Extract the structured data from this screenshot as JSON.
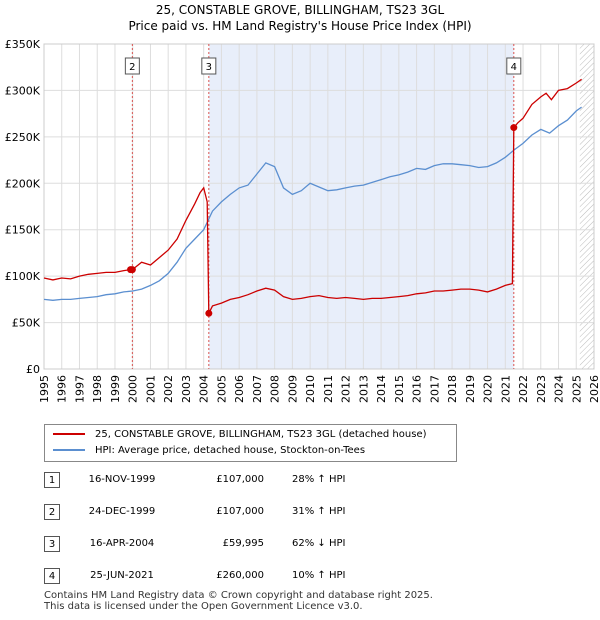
{
  "title_line1": "25, CONSTABLE GROVE, BILLINGHAM, TS23 3GL",
  "title_line2": "Price paid vs. HM Land Registry's House Price Index (HPI)",
  "chart_data": {
    "type": "line",
    "ylim": [
      0,
      350000
    ],
    "xlim": [
      1995,
      2026
    ],
    "y_ticks": [
      {
        "value": 0,
        "label": "£0"
      },
      {
        "value": 50000,
        "label": "£50K"
      },
      {
        "value": 100000,
        "label": "£100K"
      },
      {
        "value": 150000,
        "label": "£150K"
      },
      {
        "value": 200000,
        "label": "£200K"
      },
      {
        "value": 250000,
        "label": "£250K"
      },
      {
        "value": 300000,
        "label": "£300K"
      },
      {
        "value": 350000,
        "label": "£350K"
      }
    ],
    "x_ticks": [
      "1995",
      "1996",
      "1997",
      "1998",
      "1999",
      "2000",
      "2001",
      "2002",
      "2003",
      "2004",
      "2005",
      "2006",
      "2007",
      "2008",
      "2009",
      "2010",
      "2011",
      "2012",
      "2013",
      "2014",
      "2015",
      "2016",
      "2017",
      "2018",
      "2019",
      "2020",
      "2021",
      "2022",
      "2023",
      "2024",
      "2025",
      "2026"
    ],
    "shaded_span": [
      2004.29,
      2021.48
    ],
    "forecast_start": 2025.2,
    "colors": {
      "property": "#cc0000",
      "hpi": "#5b8fd0",
      "shade": "#e8eefa",
      "event_line": "#d9534f",
      "grid": "#dddddd"
    },
    "series": [
      {
        "name": "25, CONSTABLE GROVE, BILLINGHAM, TS23 3GL (detached house)",
        "x": [
          1995.0,
          1995.5,
          1996.0,
          1996.5,
          1997.0,
          1997.5,
          1998.0,
          1998.5,
          1999.0,
          1999.5,
          1999.88,
          1999.98,
          2000.5,
          2001.0,
          2001.5,
          2002.0,
          2002.5,
          2003.0,
          2003.5,
          2003.8,
          2004.0,
          2004.2,
          2004.29,
          2004.5,
          2005.0,
          2005.5,
          2006.0,
          2006.5,
          2007.0,
          2007.5,
          2008.0,
          2008.5,
          2009.0,
          2009.5,
          2010.0,
          2010.5,
          2011.0,
          2011.5,
          2012.0,
          2012.5,
          2013.0,
          2013.5,
          2014.0,
          2014.5,
          2015.0,
          2015.5,
          2016.0,
          2016.5,
          2017.0,
          2017.5,
          2018.0,
          2018.5,
          2019.0,
          2019.5,
          2020.0,
          2020.5,
          2021.0,
          2021.4,
          2021.48,
          2021.7,
          2022.0,
          2022.5,
          2023.0,
          2023.3,
          2023.6,
          2024.0,
          2024.5,
          2025.0,
          2025.3
        ],
        "values": [
          98000,
          96000,
          98000,
          97000,
          100000,
          102000,
          103000,
          104000,
          104000,
          106000,
          107000,
          107000,
          115000,
          112000,
          120000,
          128000,
          140000,
          160000,
          178000,
          190000,
          195000,
          180000,
          59995,
          68000,
          71000,
          75000,
          77000,
          80000,
          84000,
          87000,
          85000,
          78000,
          75000,
          76000,
          78000,
          79000,
          77000,
          76000,
          77000,
          76000,
          75000,
          76000,
          76000,
          77000,
          78000,
          79000,
          81000,
          82000,
          84000,
          84000,
          85000,
          86000,
          86000,
          85000,
          83000,
          86000,
          90000,
          92000,
          260000,
          265000,
          270000,
          285000,
          293000,
          297000,
          290000,
          300000,
          302000,
          308000,
          312000
        ]
      },
      {
        "name": "HPI: Average price, detached house, Stockton-on-Tees",
        "x": [
          1995.0,
          1995.5,
          1996.0,
          1996.5,
          1997.0,
          1997.5,
          1998.0,
          1998.5,
          1999.0,
          1999.5,
          2000.0,
          2000.5,
          2001.0,
          2001.5,
          2002.0,
          2002.5,
          2003.0,
          2003.5,
          2004.0,
          2004.5,
          2005.0,
          2005.5,
          2006.0,
          2006.5,
          2007.0,
          2007.5,
          2008.0,
          2008.5,
          2009.0,
          2009.5,
          2010.0,
          2010.5,
          2011.0,
          2011.5,
          2012.0,
          2012.5,
          2013.0,
          2013.5,
          2014.0,
          2014.5,
          2015.0,
          2015.5,
          2016.0,
          2016.5,
          2017.0,
          2017.5,
          2018.0,
          2018.5,
          2019.0,
          2019.5,
          2020.0,
          2020.5,
          2021.0,
          2021.5,
          2022.0,
          2022.5,
          2023.0,
          2023.5,
          2024.0,
          2024.5,
          2025.0,
          2025.3
        ],
        "values": [
          75000,
          74000,
          75000,
          75000,
          76000,
          77000,
          78000,
          80000,
          81000,
          83000,
          84000,
          86000,
          90000,
          95000,
          103000,
          115000,
          130000,
          140000,
          150000,
          170000,
          180000,
          188000,
          195000,
          198000,
          210000,
          222000,
          218000,
          195000,
          188000,
          192000,
          200000,
          196000,
          192000,
          193000,
          195000,
          197000,
          198000,
          201000,
          204000,
          207000,
          209000,
          212000,
          216000,
          215000,
          219000,
          221000,
          221000,
          220000,
          219000,
          217000,
          218000,
          222000,
          228000,
          236000,
          243000,
          252000,
          258000,
          254000,
          262000,
          268000,
          278000,
          282000
        ]
      }
    ],
    "markers": [
      {
        "id": "1",
        "x": 1999.88,
        "y": 107000,
        "show_line": false
      },
      {
        "id": "2",
        "x": 1999.98,
        "y": 107000,
        "show_line": true
      },
      {
        "id": "3",
        "x": 2004.29,
        "y": 59995,
        "show_line": true
      },
      {
        "id": "4",
        "x": 2021.48,
        "y": 260000,
        "show_line": true
      }
    ]
  },
  "legend": {
    "property_label": "25, CONSTABLE GROVE, BILLINGHAM, TS23 3GL (detached house)",
    "hpi_label": "HPI: Average price, detached house, Stockton-on-Tees"
  },
  "transactions": [
    {
      "num": "1",
      "date": "16-NOV-1999",
      "price": "£107,000",
      "hpi": "28% ↑ HPI"
    },
    {
      "num": "2",
      "date": "24-DEC-1999",
      "price": "£107,000",
      "hpi": "31% ↑ HPI"
    },
    {
      "num": "3",
      "date": "16-APR-2004",
      "price": "£59,995",
      "hpi": "62% ↓ HPI"
    },
    {
      "num": "4",
      "date": "25-JUN-2021",
      "price": "£260,000",
      "hpi": "10% ↑ HPI"
    }
  ],
  "footer_line1": "Contains HM Land Registry data © Crown copyright and database right 2025.",
  "footer_line2": "This data is licensed under the Open Government Licence v3.0."
}
